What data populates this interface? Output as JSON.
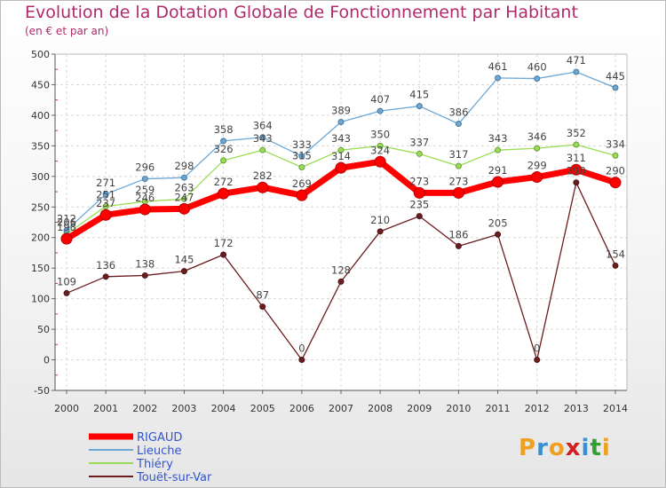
{
  "title": "Evolution de la Dotation Globale de Fonctionnement par Habitant",
  "subtitle": "(en € et par an)",
  "logo": {
    "text": "Proxiti",
    "letters": [
      "P",
      "r",
      "o",
      "x",
      "i",
      "t",
      "i"
    ],
    "colors": [
      "#f0a020",
      "#3a8fd0",
      "#f0a020",
      "#d02020",
      "#3a8fd0",
      "#30a030",
      "#f0a020"
    ]
  },
  "chart_data": {
    "type": "line",
    "title": "Evolution de la Dotation Globale de Fonctionnement par Habitant",
    "subtitle": "(en € et par an)",
    "x": [
      "2000",
      "2001",
      "2002",
      "2003",
      "2004",
      "2005",
      "2006",
      "2007",
      "2008",
      "2009",
      "2010",
      "2011",
      "2012",
      "2013",
      "2014"
    ],
    "ylim": [
      -50,
      500
    ],
    "yticks": [
      "-50",
      "0",
      "50",
      "100",
      "150",
      "200",
      "250",
      "300",
      "350",
      "400",
      "450",
      "500"
    ],
    "series": [
      {
        "name": "Touët-sur-Var",
        "color": "#6b1d20",
        "width": 1.3,
        "dot": 3,
        "values": [
          109,
          136,
          138,
          145,
          172,
          87,
          0,
          128,
          210,
          235,
          186,
          205,
          0,
          290,
          154
        ],
        "labels": [
          "109",
          "136",
          "138",
          "145",
          "172",
          "87",
          "0",
          "128",
          "210",
          "235",
          "186",
          "205",
          "0",
          "290",
          "154"
        ]
      },
      {
        "name": "Thiéry",
        "color": "#99dd55",
        "width": 1.3,
        "dot": 3,
        "values": [
          206,
          251,
          259,
          263,
          326,
          343,
          315,
          343,
          350,
          337,
          317,
          343,
          346,
          352,
          334
        ],
        "labels": [
          "206",
          "251",
          "259",
          "263",
          "326",
          "343",
          "315",
          "343",
          "350",
          "337",
          "317",
          "343",
          "346",
          "352",
          "334"
        ]
      },
      {
        "name": "Lieuche",
        "color": "#6aa8d8",
        "width": 1.3,
        "dot": 3,
        "values": [
          212,
          271,
          296,
          298,
          358,
          364,
          333,
          389,
          407,
          415,
          386,
          461,
          460,
          471,
          445
        ],
        "labels": [
          "212",
          "271",
          "296",
          "298",
          "358",
          "364",
          "333",
          "389",
          "407",
          "415",
          "386",
          "461",
          "460",
          "471",
          "445"
        ]
      },
      {
        "name": "RIGAUD",
        "color": "#ff0000",
        "width": 7,
        "dot": 6,
        "values": [
          198,
          237,
          246,
          247,
          272,
          282,
          269,
          314,
          324,
          273,
          273,
          291,
          299,
          311,
          290
        ],
        "labels": [
          "198",
          "237",
          "246",
          "247",
          "272",
          "282",
          "269",
          "314",
          "324",
          "273",
          "273",
          "291",
          "299",
          "311",
          "290"
        ]
      }
    ],
    "legend": [
      "RIGAUD",
      "Lieuche",
      "Thiéry",
      "Touët-sur-Var"
    ],
    "legend_position": "bottom-left",
    "grid": true
  }
}
